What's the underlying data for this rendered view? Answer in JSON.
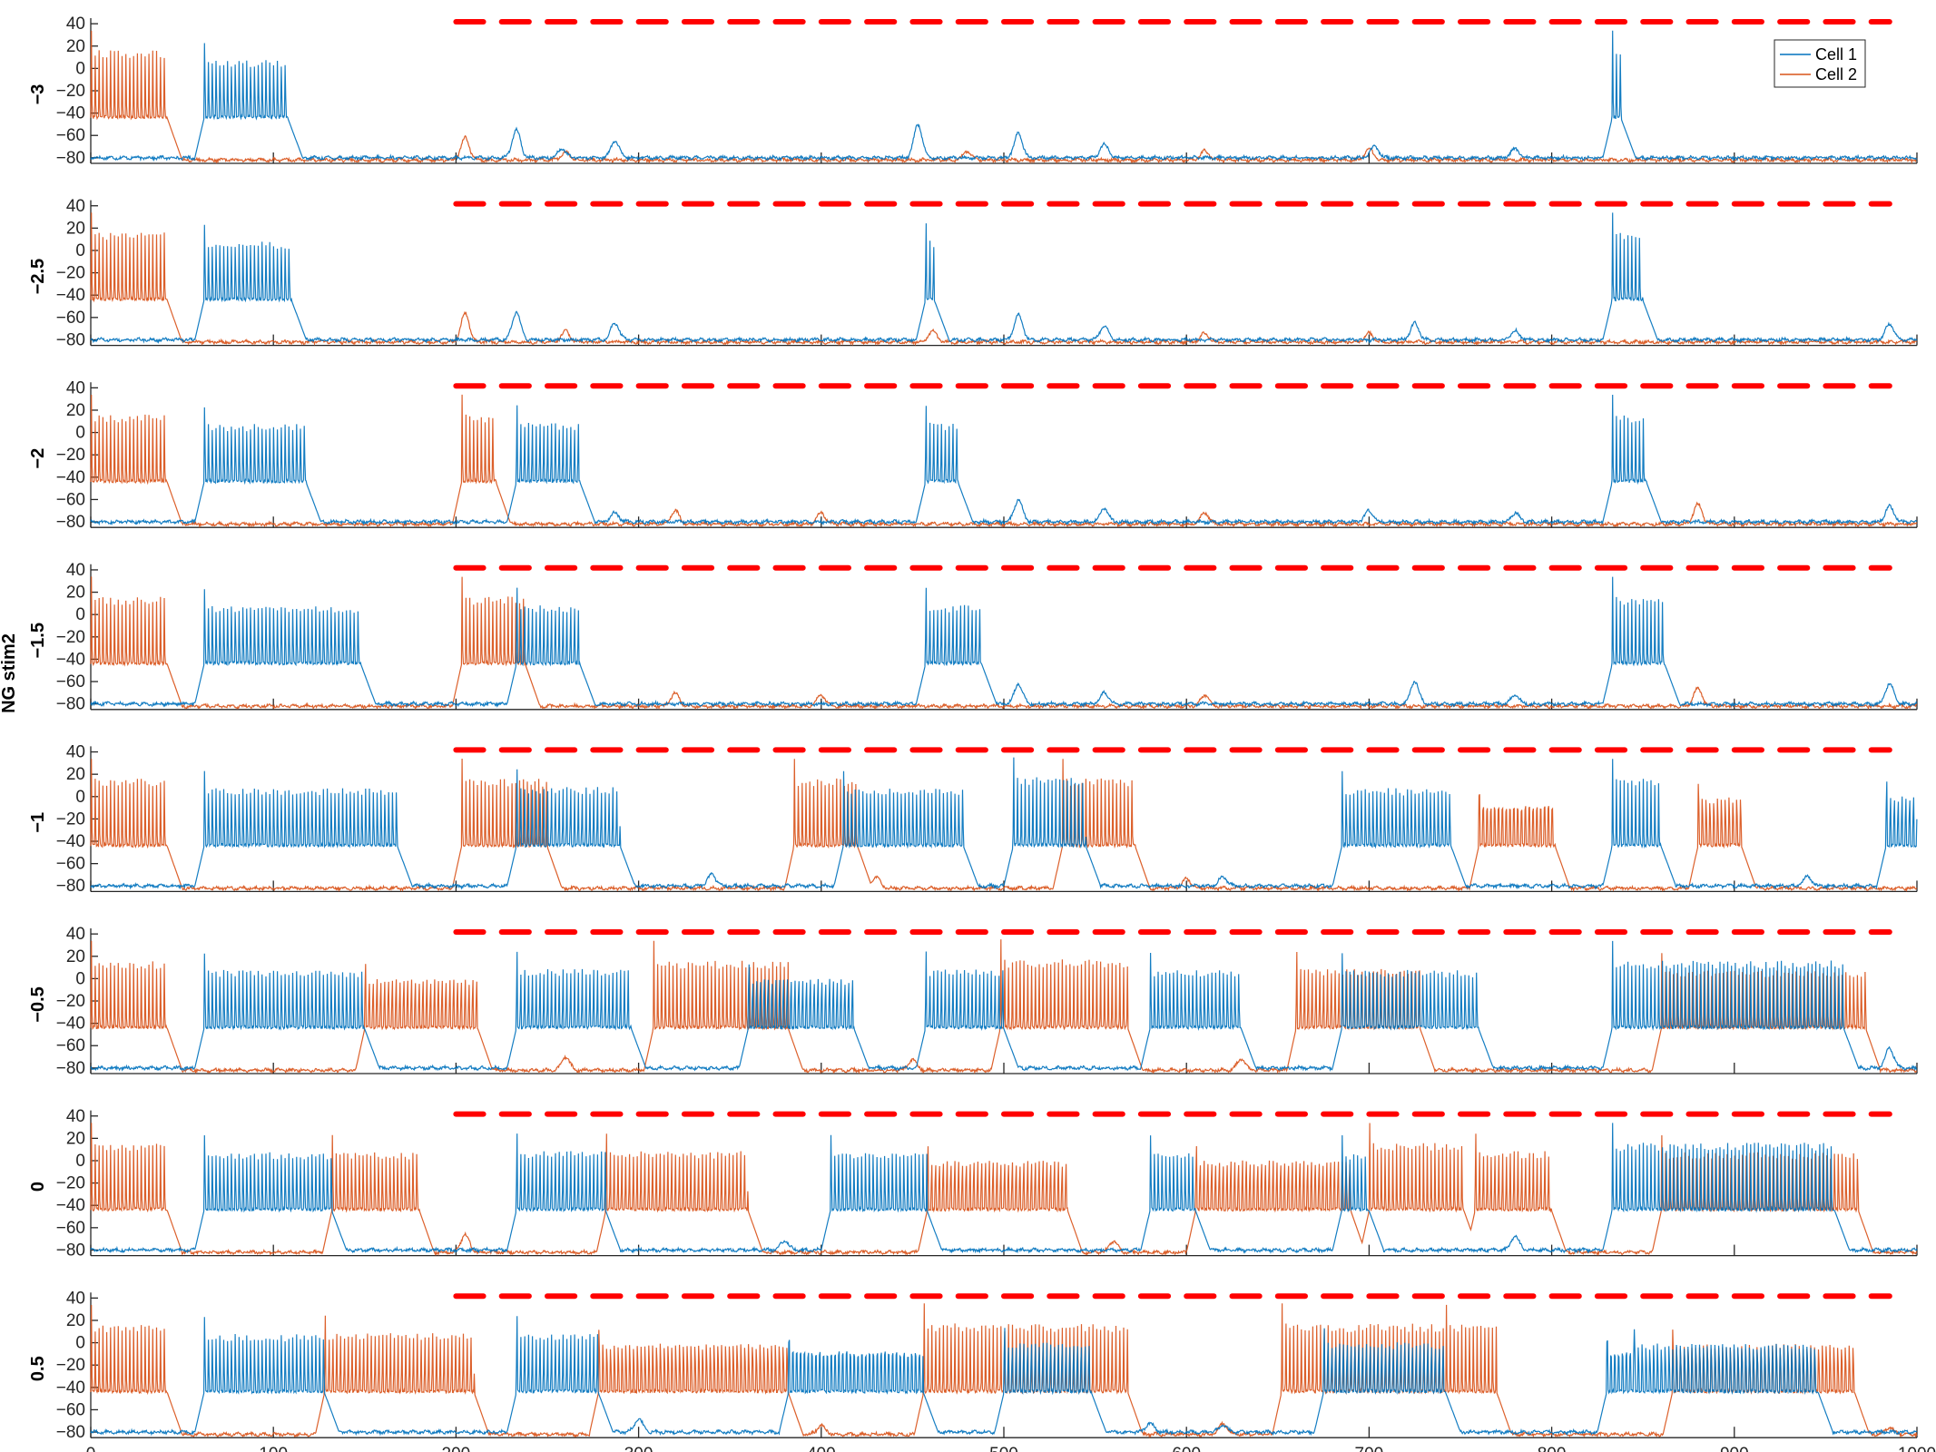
{
  "chart_data": {
    "type": "line",
    "ylabel": "NG stim2",
    "xlim": [
      0,
      1000
    ],
    "ylim": [
      -85,
      45
    ],
    "x_ticks": [
      "0",
      "100",
      "200",
      "300",
      "400",
      "500",
      "600",
      "700",
      "800",
      "900",
      "1000"
    ],
    "y_ticks": [
      "40",
      "20",
      "0",
      "-20",
      "-40",
      "-60",
      "-80"
    ],
    "legend": {
      "position": "top-right",
      "entries": [
        "Cell 1",
        "Cell 2"
      ]
    },
    "colors": {
      "cell1": "#0072BD",
      "cell2": "#D95319",
      "stim": "#FF0000"
    },
    "stim_marker": {
      "y": 45,
      "start": 200,
      "end": 985,
      "period": 25,
      "duty": 0.6
    },
    "panels": [
      {
        "label": "-3",
        "cell1_bursts": [
          [
            62,
            108
          ],
          [
            833,
            838
          ]
        ],
        "cell2_bursts": [
          [
            0,
            42
          ]
        ],
        "cell1_bumps": [
          [
            233,
            -55
          ],
          [
            258,
            -72
          ],
          [
            287,
            -65
          ],
          [
            453,
            -50
          ],
          [
            508,
            -58
          ],
          [
            555,
            -68
          ],
          [
            703,
            -70
          ],
          [
            780,
            -72
          ]
        ],
        "cell2_bumps": [
          [
            205,
            -62
          ],
          [
            260,
            -75
          ],
          [
            480,
            -74
          ],
          [
            610,
            -74
          ],
          [
            700,
            -72
          ]
        ]
      },
      {
        "label": "-2.5",
        "cell1_bursts": [
          [
            62,
            110
          ],
          [
            457,
            462
          ],
          [
            833,
            850
          ]
        ],
        "cell2_bursts": [
          [
            0,
            42
          ]
        ],
        "cell1_bumps": [
          [
            233,
            -55
          ],
          [
            287,
            -65
          ],
          [
            508,
            -58
          ],
          [
            555,
            -68
          ],
          [
            725,
            -65
          ],
          [
            780,
            -72
          ],
          [
            985,
            -66
          ]
        ],
        "cell2_bumps": [
          [
            205,
            -56
          ],
          [
            260,
            -72
          ],
          [
            461,
            -72
          ],
          [
            610,
            -74
          ],
          [
            700,
            -74
          ]
        ]
      },
      {
        "label": "-2",
        "cell1_bursts": [
          [
            62,
            118
          ],
          [
            233,
            268
          ],
          [
            457,
            475
          ],
          [
            833,
            852
          ]
        ],
        "cell2_bursts": [
          [
            0,
            42
          ],
          [
            203,
            222
          ]
        ],
        "cell1_bumps": [
          [
            287,
            -72
          ],
          [
            508,
            -60
          ],
          [
            555,
            -68
          ],
          [
            700,
            -70
          ],
          [
            780,
            -72
          ],
          [
            985,
            -66
          ]
        ],
        "cell2_bumps": [
          [
            320,
            -70
          ],
          [
            400,
            -72
          ],
          [
            610,
            -72
          ],
          [
            880,
            -64
          ]
        ]
      },
      {
        "label": "-1.5",
        "cell1_bursts": [
          [
            62,
            148
          ],
          [
            233,
            268
          ],
          [
            457,
            488
          ],
          [
            833,
            862
          ]
        ],
        "cell2_bursts": [
          [
            0,
            42
          ],
          [
            203,
            238
          ]
        ],
        "cell1_bumps": [
          [
            508,
            -62
          ],
          [
            555,
            -70
          ],
          [
            725,
            -60
          ],
          [
            780,
            -72
          ],
          [
            985,
            -62
          ]
        ],
        "cell2_bumps": [
          [
            320,
            -70
          ],
          [
            400,
            -72
          ],
          [
            610,
            -72
          ],
          [
            880,
            -66
          ]
        ]
      },
      {
        "label": "-1",
        "cell1_bursts": [
          [
            62,
            168
          ],
          [
            233,
            290
          ],
          [
            412,
            478
          ],
          [
            505,
            545
          ],
          [
            685,
            745
          ],
          [
            833,
            860
          ],
          [
            983,
            1000
          ]
        ],
        "cell2_bursts": [
          [
            0,
            42
          ],
          [
            203,
            250
          ],
          [
            385,
            420
          ],
          [
            532,
            572
          ],
          [
            760,
            802
          ],
          [
            880,
            904
          ]
        ],
        "cell1_bumps": [
          [
            340,
            -70
          ],
          [
            620,
            -72
          ],
          [
            940,
            -72
          ]
        ],
        "cell2_bumps": [
          [
            430,
            -72
          ],
          [
            600,
            -74
          ],
          [
            780,
            -62
          ]
        ]
      },
      {
        "label": "-0.5",
        "cell1_bursts": [
          [
            62,
            150
          ],
          [
            233,
            296
          ],
          [
            360,
            418
          ],
          [
            457,
            500
          ],
          [
            580,
            630
          ],
          [
            685,
            760
          ],
          [
            833,
            960
          ]
        ],
        "cell2_bursts": [
          [
            0,
            42
          ],
          [
            150,
            212
          ],
          [
            308,
            382
          ],
          [
            498,
            568
          ],
          [
            660,
            728
          ],
          [
            860,
            972
          ]
        ],
        "cell1_bumps": [
          [
            985,
            -62
          ]
        ],
        "cell2_bumps": [
          [
            260,
            -70
          ],
          [
            450,
            -72
          ],
          [
            630,
            -72
          ]
        ]
      },
      {
        "label": "0",
        "cell1_bursts": [
          [
            62,
            132
          ],
          [
            233,
            282
          ],
          [
            405,
            458
          ],
          [
            580,
            605
          ],
          [
            685,
            700
          ],
          [
            833,
            955
          ]
        ],
        "cell2_bursts": [
          [
            0,
            42
          ],
          [
            132,
            180
          ],
          [
            282,
            360
          ],
          [
            458,
            535
          ],
          [
            605,
            690
          ],
          [
            700,
            752
          ],
          [
            758,
            800
          ],
          [
            860,
            968
          ]
        ],
        "cell1_bumps": [
          [
            380,
            -72
          ],
          [
            780,
            -68
          ]
        ],
        "cell2_bumps": [
          [
            205,
            -66
          ],
          [
            560,
            -72
          ],
          [
            650,
            -70
          ]
        ]
      },
      {
        "label": "0.5",
        "cell1_bursts": [
          [
            62,
            128
          ],
          [
            233,
            278
          ],
          [
            382,
            456
          ],
          [
            500,
            548
          ],
          [
            675,
            742
          ],
          [
            830,
            845
          ],
          [
            845,
            946
          ]
        ],
        "cell2_bursts": [
          [
            0,
            42
          ],
          [
            128,
            210
          ],
          [
            278,
            382
          ],
          [
            456,
            568
          ],
          [
            652,
            742
          ],
          [
            742,
            770
          ],
          [
            866,
            966
          ]
        ],
        "cell1_bumps": [
          [
            300,
            -68
          ],
          [
            580,
            -72
          ],
          [
            620,
            -74
          ]
        ],
        "cell2_bumps": [
          [
            400,
            -74
          ],
          [
            620,
            -72
          ],
          [
            985,
            -76
          ]
        ]
      }
    ]
  }
}
